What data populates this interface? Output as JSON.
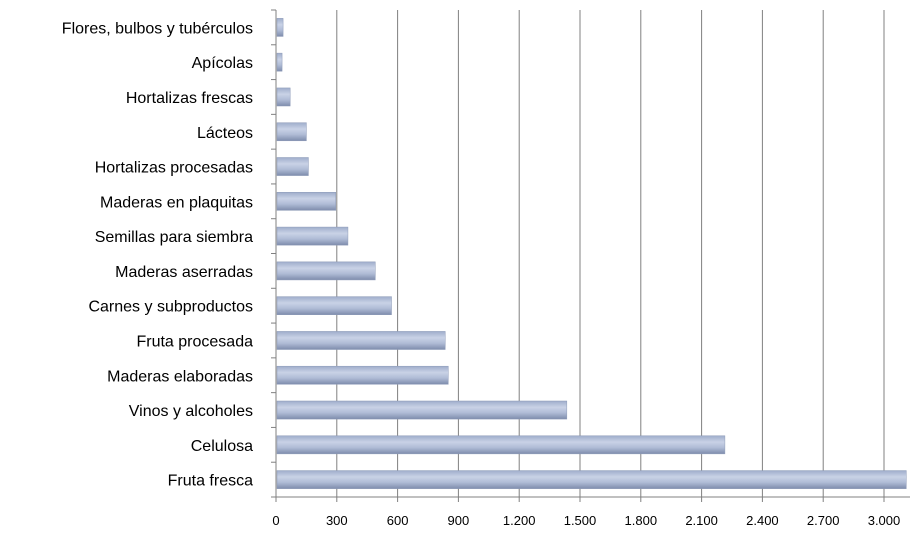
{
  "chart_data": {
    "type": "bar",
    "orientation": "horizontal",
    "title": "",
    "xlabel": "",
    "ylabel": "",
    "categories": [
      "Flores, bulbos y tubérculos",
      "Apícolas",
      "Hortalizas frescas",
      "Lácteos",
      "Hortalizas procesadas",
      "Maderas en plaquitas",
      "Semillas para siembra",
      "Maderas aserradas",
      "Carnes y subproductos",
      "Fruta procesada",
      "Maderas  elaboradas",
      "Vinos y alcoholes",
      "Celulosa",
      "Fruta fresca"
    ],
    "values": [
      35,
      30,
      70,
      150,
      160,
      295,
      355,
      490,
      570,
      835,
      850,
      1435,
      2215,
      3110
    ],
    "xlim": [
      0,
      3000
    ],
    "xticks": [
      0,
      300,
      600,
      900,
      1200,
      1500,
      1800,
      2100,
      2400,
      2700,
      3000
    ],
    "xtick_labels": [
      "0",
      "300",
      "600",
      "900",
      "1.200",
      "1.500",
      "1.800",
      "2.100",
      "2.400",
      "2.700",
      "3.000"
    ],
    "grid": "vertical major gridlines",
    "legend": "none",
    "colors": {
      "bar_light": "#c9d2e6",
      "bar_mid": "#9fadcb",
      "bar_dark": "#7e8cac",
      "grid": "#808080",
      "axis": "#808080"
    }
  }
}
